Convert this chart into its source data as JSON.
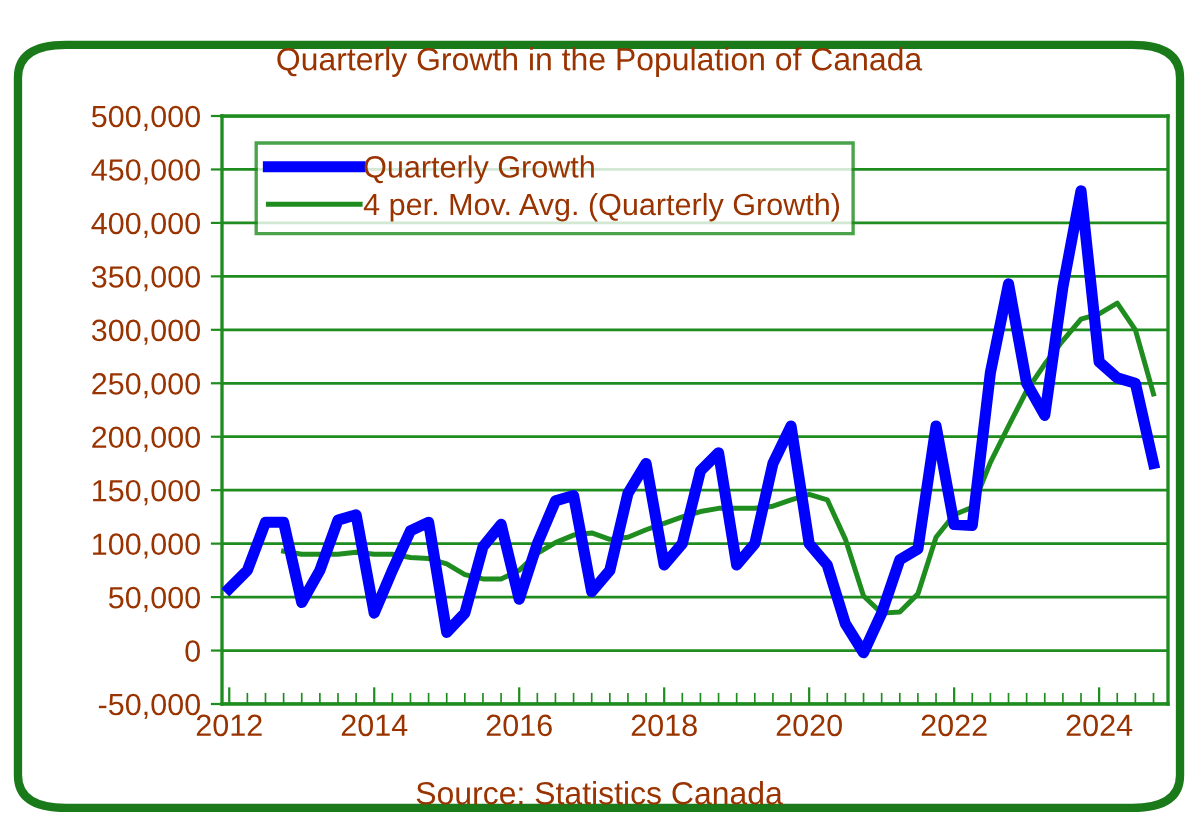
{
  "chart_data": {
    "type": "line",
    "title": "Quarterly Growth in the Population of Canada",
    "annotations": [
      "Source: Statistics Canada"
    ],
    "x": [
      2012.0,
      2012.25,
      2012.5,
      2012.75,
      2013.0,
      2013.25,
      2013.5,
      2013.75,
      2014.0,
      2014.25,
      2014.5,
      2014.75,
      2015.0,
      2015.25,
      2015.5,
      2015.75,
      2016.0,
      2016.25,
      2016.5,
      2016.75,
      2017.0,
      2017.25,
      2017.5,
      2017.75,
      2018.0,
      2018.25,
      2018.5,
      2018.75,
      2019.0,
      2019.25,
      2019.5,
      2019.75,
      2020.0,
      2020.25,
      2020.5,
      2020.75,
      2021.0,
      2021.25,
      2021.5,
      2021.75,
      2022.0,
      2022.25,
      2022.5,
      2022.75,
      2023.0,
      2023.25,
      2023.5,
      2023.75,
      2024.0,
      2024.25,
      2024.5,
      2024.75
    ],
    "series": [
      {
        "name": "Quarterly Growth",
        "color": "#0000ff",
        "values": [
          58000,
          75000,
          120000,
          120000,
          45000,
          75000,
          122000,
          127000,
          35000,
          75000,
          112000,
          120000,
          17000,
          35000,
          97000,
          118000,
          48000,
          100000,
          140000,
          145000,
          55000,
          75000,
          147000,
          175000,
          80000,
          100000,
          168000,
          185000,
          80000,
          100000,
          175000,
          210000,
          100000,
          80000,
          25000,
          -2000,
          35000,
          85000,
          95000,
          210000,
          118000,
          117000,
          260000,
          343000,
          250000,
          220000,
          340000,
          430000,
          270000,
          255000,
          250000,
          175000
        ]
      },
      {
        "name": "4 per. Mov. Avg. (Quarterly Growth)",
        "color": "#1e8c1e",
        "values": [
          null,
          null,
          null,
          93000,
          90000,
          90000,
          90000,
          92000,
          90000,
          90000,
          87000,
          86000,
          81000,
          71000,
          67000,
          67000,
          75000,
          91000,
          101000,
          108000,
          110000,
          104000,
          106000,
          113000,
          119000,
          125000,
          130000,
          133000,
          133000,
          133000,
          135000,
          141000,
          146000,
          141000,
          104000,
          51000,
          35000,
          36000,
          53000,
          106000,
          127000,
          134000,
          176000,
          210000,
          243000,
          268000,
          290000,
          310000,
          315000,
          325000,
          300000,
          240000
        ]
      }
    ],
    "xlim": [
      2011.9,
      2024.95
    ],
    "xticks": [
      2012,
      2014,
      2016,
      2018,
      2020,
      2022,
      2024
    ],
    "ylim": [
      -50000,
      500000
    ],
    "yticks": [
      {
        "value": -50000,
        "label": "-50,000"
      },
      {
        "value": 0,
        "label": "0"
      },
      {
        "value": 50000,
        "label": "50,000"
      },
      {
        "value": 100000,
        "label": "100,000"
      },
      {
        "value": 150000,
        "label": "150,000"
      },
      {
        "value": 200000,
        "label": "200,000"
      },
      {
        "value": 250000,
        "label": "250,000"
      },
      {
        "value": 300000,
        "label": "300,000"
      },
      {
        "value": 350000,
        "label": "350,000"
      },
      {
        "value": 400000,
        "label": "400,000"
      },
      {
        "value": 450000,
        "label": "450,000"
      },
      {
        "value": 500000,
        "label": "500,000"
      }
    ],
    "grid": "y",
    "legend": "top left",
    "marker": "none",
    "line_style": "solid"
  }
}
